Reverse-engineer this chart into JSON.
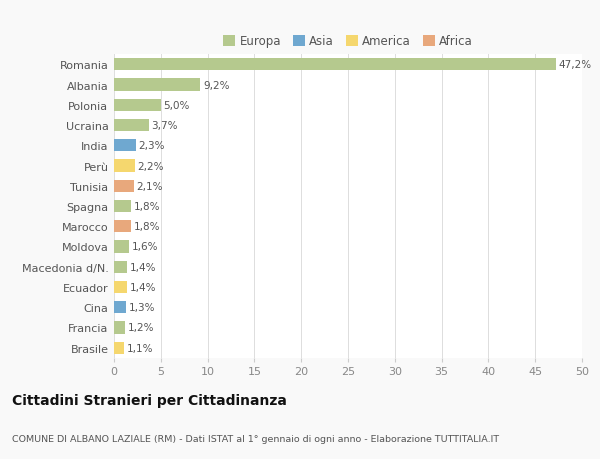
{
  "countries": [
    "Romania",
    "Albania",
    "Polonia",
    "Ucraina",
    "India",
    "Perù",
    "Tunisia",
    "Spagna",
    "Marocco",
    "Moldova",
    "Macedonia d/N.",
    "Ecuador",
    "Cina",
    "Francia",
    "Brasile"
  ],
  "values": [
    47.2,
    9.2,
    5.0,
    3.7,
    2.3,
    2.2,
    2.1,
    1.8,
    1.8,
    1.6,
    1.4,
    1.4,
    1.3,
    1.2,
    1.1
  ],
  "labels": [
    "47,2%",
    "9,2%",
    "5,0%",
    "3,7%",
    "2,3%",
    "2,2%",
    "2,1%",
    "1,8%",
    "1,8%",
    "1,6%",
    "1,4%",
    "1,4%",
    "1,3%",
    "1,2%",
    "1,1%"
  ],
  "continents": [
    "Europa",
    "Europa",
    "Europa",
    "Europa",
    "Asia",
    "America",
    "Africa",
    "Europa",
    "Africa",
    "Europa",
    "Europa",
    "America",
    "Asia",
    "Europa",
    "America"
  ],
  "colors": {
    "Europa": "#b5c98e",
    "Asia": "#6fa8d0",
    "America": "#f5d76e",
    "Africa": "#e8a87c"
  },
  "xlim": [
    0,
    50
  ],
  "xticks": [
    0,
    5,
    10,
    15,
    20,
    25,
    30,
    35,
    40,
    45,
    50
  ],
  "title": "Cittadini Stranieri per Cittadinanza",
  "subtitle": "COMUNE DI ALBANO LAZIALE (RM) - Dati ISTAT al 1° gennaio di ogni anno - Elaborazione TUTTITALIA.IT",
  "background_color": "#f9f9f9",
  "plot_bg_color": "#ffffff",
  "grid_color": "#dddddd",
  "legend_order": [
    "Europa",
    "Asia",
    "America",
    "Africa"
  ]
}
